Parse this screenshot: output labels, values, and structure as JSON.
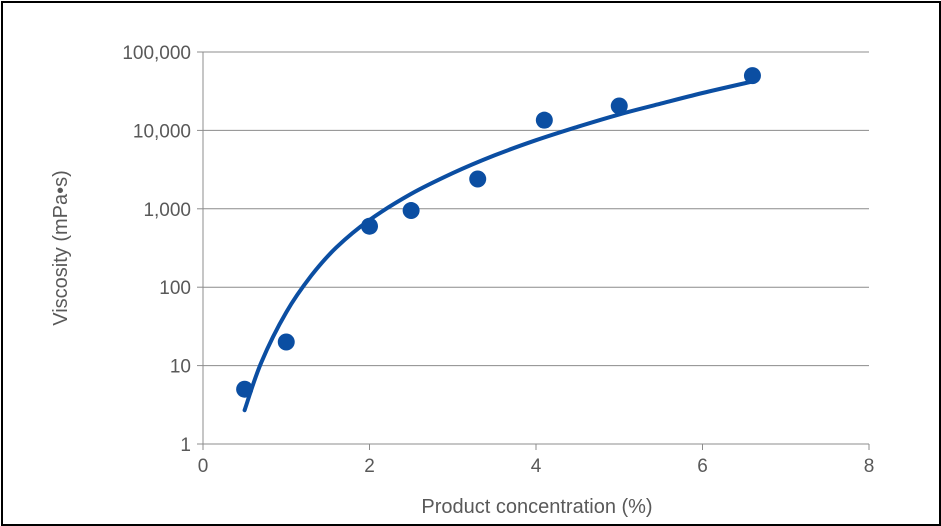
{
  "chart_data": {
    "type": "scatter",
    "title": "",
    "xlabel": "Product concentration (%)",
    "ylabel": "Viscosity (mPa•s)",
    "xlim": [
      0,
      8
    ],
    "ylim": [
      1,
      100000
    ],
    "yscale": "log",
    "grid": {
      "y": true,
      "x": false
    },
    "x_ticks": [
      "0",
      "2",
      "4",
      "6",
      "8"
    ],
    "y_ticks": [
      "1",
      "10",
      "100",
      "1,000",
      "10,000",
      "100,000"
    ],
    "series": [
      {
        "kind": "points",
        "x": [
          0.5,
          1.0,
          2.0,
          2.5,
          3.3,
          4.1,
          5.0,
          6.6
        ],
        "y": [
          5,
          20,
          600,
          950,
          2400,
          13500,
          20500,
          50000
        ]
      },
      {
        "kind": "trend",
        "x": [
          0.5,
          0.7,
          1.0,
          1.3,
          1.6,
          2.0,
          2.5,
          3.0,
          3.5,
          4.0,
          4.5,
          5.0,
          5.5,
          6.0,
          6.6
        ],
        "y": [
          2.7,
          11,
          48,
          140,
          320,
          720,
          1550,
          2850,
          4800,
          7500,
          11100,
          16000,
          22000,
          30000,
          42000
        ]
      }
    ],
    "colors": {
      "series": "#0b4ea2",
      "grid": "#8c8c8c",
      "axis": "#8c8c8c",
      "text": "#595959"
    }
  }
}
